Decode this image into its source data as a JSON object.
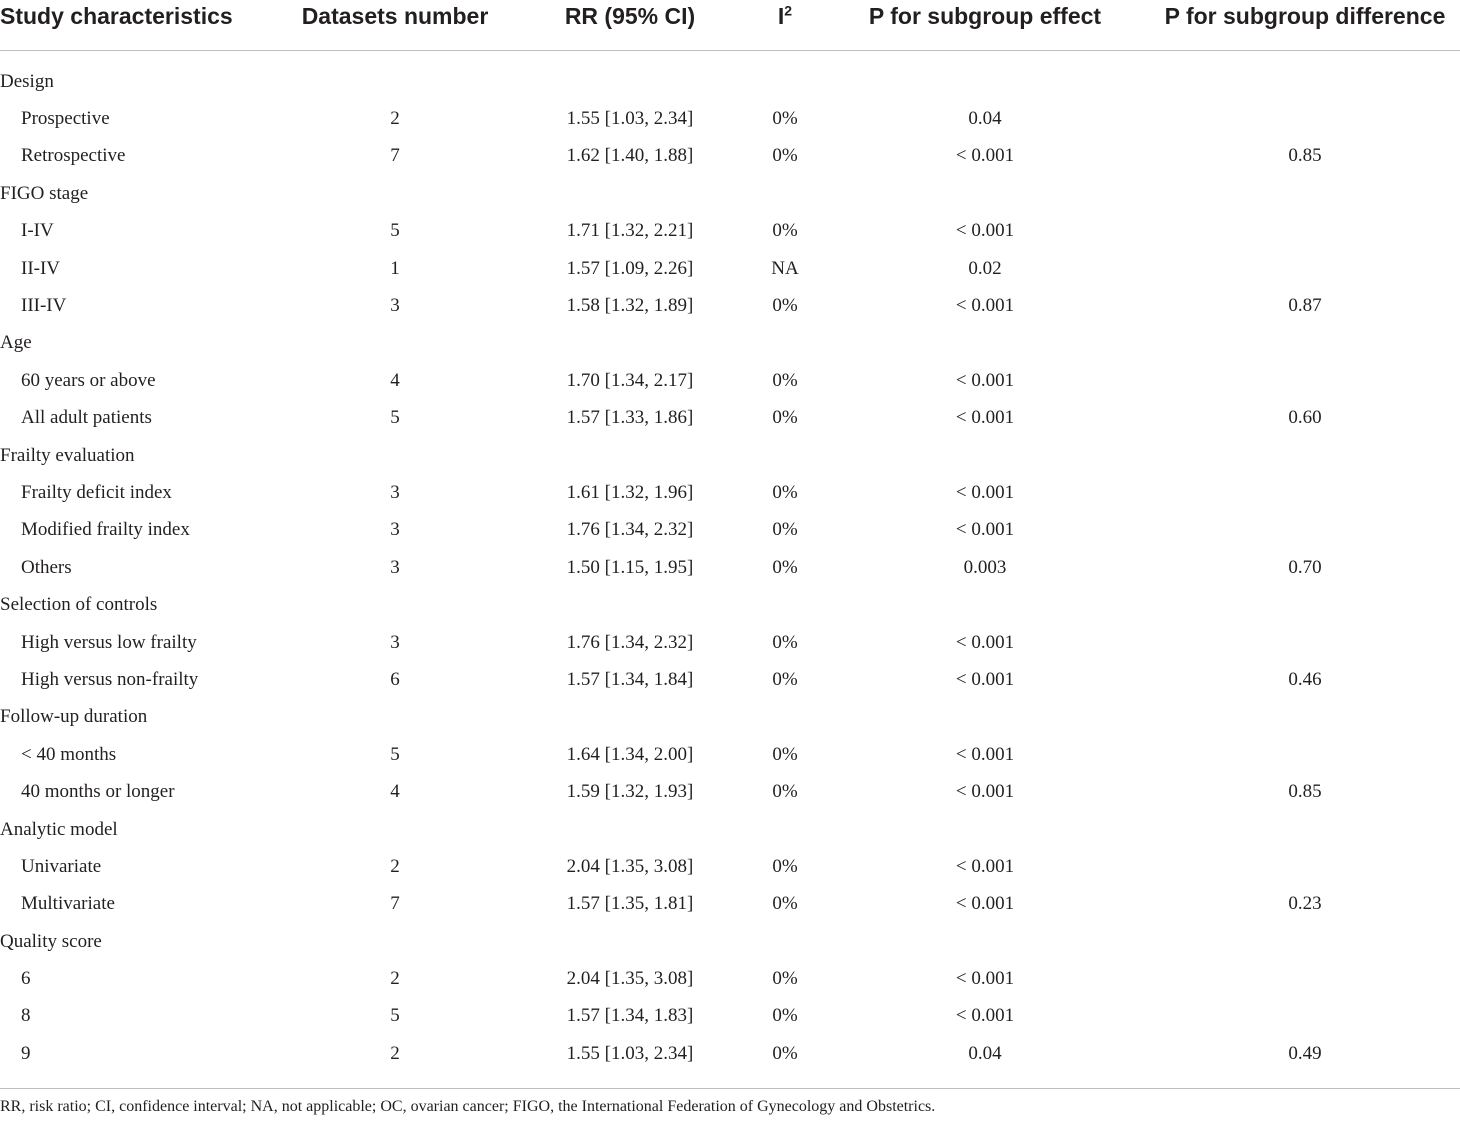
{
  "headers": {
    "study_characteristics": "Study characteristics",
    "datasets_number": "Datasets number",
    "rr": "RR (95% CI)",
    "i2_base": "I",
    "i2_sup": "2",
    "p_subgroup_effect": "P for subgroup effect",
    "p_subgroup_difference": "P for subgroup difference"
  },
  "rows": [
    {
      "label": "Design",
      "type": "group"
    },
    {
      "label": "Prospective",
      "type": "item",
      "n": "2",
      "rr": "1.55 [1.03, 2.34]",
      "i2": "0%",
      "pe": "0.04",
      "pd": ""
    },
    {
      "label": "Retrospective",
      "type": "item",
      "n": "7",
      "rr": "1.62 [1.40, 1.88]",
      "i2": "0%",
      "pe": "< 0.001",
      "pd": "0.85"
    },
    {
      "label": "FIGO stage",
      "type": "group"
    },
    {
      "label": "I-IV",
      "type": "item",
      "n": "5",
      "rr": "1.71 [1.32, 2.21]",
      "i2": "0%",
      "pe": "< 0.001",
      "pd": ""
    },
    {
      "label": "II-IV",
      "type": "item",
      "n": "1",
      "rr": "1.57 [1.09, 2.26]",
      "i2": "NA",
      "pe": "0.02",
      "pd": ""
    },
    {
      "label": "III-IV",
      "type": "item",
      "n": "3",
      "rr": "1.58 [1.32, 1.89]",
      "i2": "0%",
      "pe": "< 0.001",
      "pd": "0.87"
    },
    {
      "label": "Age",
      "type": "group"
    },
    {
      "label": "60 years or above",
      "type": "item",
      "n": "4",
      "rr": "1.70 [1.34, 2.17]",
      "i2": "0%",
      "pe": "< 0.001",
      "pd": ""
    },
    {
      "label": "All adult patients",
      "type": "item",
      "n": "5",
      "rr": "1.57 [1.33, 1.86]",
      "i2": "0%",
      "pe": "< 0.001",
      "pd": "0.60"
    },
    {
      "label": "Frailty evaluation",
      "type": "group"
    },
    {
      "label": "Frailty deficit index",
      "type": "item",
      "n": "3",
      "rr": "1.61 [1.32, 1.96]",
      "i2": "0%",
      "pe": "< 0.001",
      "pd": ""
    },
    {
      "label": "Modified frailty index",
      "type": "item",
      "n": "3",
      "rr": "1.76 [1.34, 2.32]",
      "i2": "0%",
      "pe": "< 0.001",
      "pd": ""
    },
    {
      "label": "Others",
      "type": "item",
      "n": "3",
      "rr": "1.50 [1.15, 1.95]",
      "i2": "0%",
      "pe": "0.003",
      "pd": "0.70"
    },
    {
      "label": "Selection of controls",
      "type": "group"
    },
    {
      "label": "High versus low frailty",
      "type": "item",
      "n": "3",
      "rr": "1.76 [1.34, 2.32]",
      "i2": "0%",
      "pe": "< 0.001",
      "pd": ""
    },
    {
      "label": "High versus non-frailty",
      "type": "item",
      "n": "6",
      "rr": "1.57 [1.34, 1.84]",
      "i2": "0%",
      "pe": "< 0.001",
      "pd": "0.46"
    },
    {
      "label": "Follow-up duration",
      "type": "group"
    },
    {
      "label": "< 40 months",
      "type": "item",
      "n": "5",
      "rr": "1.64 [1.34, 2.00]",
      "i2": "0%",
      "pe": "< 0.001",
      "pd": ""
    },
    {
      "label": "40 months or longer",
      "type": "item",
      "n": "4",
      "rr": "1.59 [1.32, 1.93]",
      "i2": "0%",
      "pe": "< 0.001",
      "pd": "0.85"
    },
    {
      "label": "Analytic model",
      "type": "group"
    },
    {
      "label": "Univariate",
      "type": "item",
      "n": "2",
      "rr": "2.04 [1.35, 3.08]",
      "i2": "0%",
      "pe": "< 0.001",
      "pd": ""
    },
    {
      "label": "Multivariate",
      "type": "item",
      "n": "7",
      "rr": "1.57 [1.35, 1.81]",
      "i2": "0%",
      "pe": "< 0.001",
      "pd": "0.23"
    },
    {
      "label": "Quality score",
      "type": "group"
    },
    {
      "label": "6",
      "type": "item",
      "n": "2",
      "rr": "2.04 [1.35, 3.08]",
      "i2": "0%",
      "pe": "< 0.001",
      "pd": ""
    },
    {
      "label": "8",
      "type": "item",
      "n": "5",
      "rr": "1.57 [1.34, 1.83]",
      "i2": "0%",
      "pe": "< 0.001",
      "pd": ""
    },
    {
      "label": "9",
      "type": "item",
      "n": "2",
      "rr": "1.55 [1.03, 2.34]",
      "i2": "0%",
      "pe": "0.04",
      "pd": "0.49"
    }
  ],
  "footnote": "RR, risk ratio; CI, confidence interval; NA, not applicable; OC, ovarian cancer; FIGO, the International Federation of Gynecology and Obstetrics.",
  "colors": {
    "text": "#231f20",
    "rule": "#bdbdbd"
  }
}
